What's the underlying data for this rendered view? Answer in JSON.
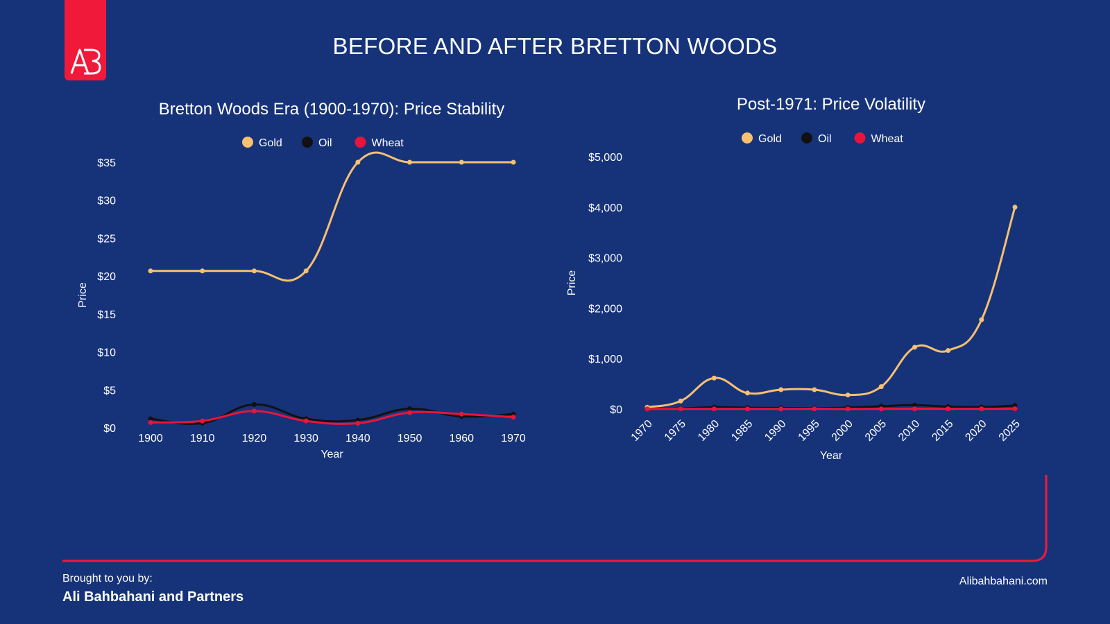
{
  "page": {
    "title": "BEFORE AND AFTER BRETTON WOODS",
    "footer": {
      "label": "Brought to you by:",
      "company": "Ali Bahbahani and Partners",
      "website": "Alibahbahani.com"
    },
    "colors": {
      "background": "#16337a",
      "accent": "#f0193a",
      "gold": "#f8c070",
      "oil": "#111111",
      "wheat": "#e8153a"
    }
  },
  "chart_data": [
    {
      "type": "line",
      "title": "Bretton Woods Era (1900-1970): Price Stability",
      "xlabel": "Year",
      "ylabel": "Price",
      "x": [
        1900,
        1910,
        1920,
        1930,
        1940,
        1950,
        1960,
        1970
      ],
      "xticks": [
        "1900",
        "1910",
        "1920",
        "1930",
        "1940",
        "1950",
        "1960",
        "1970"
      ],
      "yticks": [
        "$0",
        "$5",
        "$10",
        "$15",
        "$20",
        "$25",
        "$30",
        "$35"
      ],
      "ylim": [
        0,
        35
      ],
      "legend_position": "top-center",
      "grid": false,
      "series": [
        {
          "name": "Gold",
          "color": "#f8c070",
          "values": [
            20.67,
            20.67,
            20.67,
            20.67,
            35,
            35,
            35,
            35
          ]
        },
        {
          "name": "Oil",
          "color": "#111111",
          "values": [
            1.19,
            0.61,
            3.07,
            1.19,
            1.02,
            2.51,
            1.5,
            1.8
          ]
        },
        {
          "name": "Wheat",
          "color": "#e8153a",
          "values": [
            0.7,
            0.9,
            2.2,
            0.9,
            0.6,
            2.0,
            1.8,
            1.4
          ]
        }
      ]
    },
    {
      "type": "line",
      "title": "Post-1971: Price Volatility",
      "xlabel": "Year",
      "ylabel": "Price",
      "x": [
        1970,
        1975,
        1980,
        1985,
        1990,
        1995,
        2000,
        2005,
        2010,
        2015,
        2020,
        2025
      ],
      "xticks": [
        "1970",
        "1975",
        "1980",
        "1985",
        "1990",
        "1995",
        "2000",
        "2005",
        "2010",
        "2015",
        "2020",
        "2025"
      ],
      "yticks": [
        "$0",
        "$1,000",
        "$2,000",
        "$3,000",
        "$4,000",
        "$5,000"
      ],
      "ylim": [
        0,
        5000
      ],
      "legend_position": "top-center",
      "grid": false,
      "series": [
        {
          "name": "Gold",
          "color": "#f8c070",
          "values": [
            36,
            160,
            615,
            317,
            384,
            384,
            279,
            445,
            1225,
            1160,
            1770,
            4000
          ]
        },
        {
          "name": "Oil",
          "color": "#111111",
          "values": [
            2,
            12,
            37,
            27,
            23,
            17,
            30,
            56,
            79,
            48,
            40,
            70
          ]
        },
        {
          "name": "Wheat",
          "color": "#e8153a",
          "values": [
            1.5,
            4,
            4,
            3.5,
            3,
            4.5,
            2.5,
            3.5,
            5,
            5,
            5.5,
            6
          ]
        }
      ]
    }
  ]
}
